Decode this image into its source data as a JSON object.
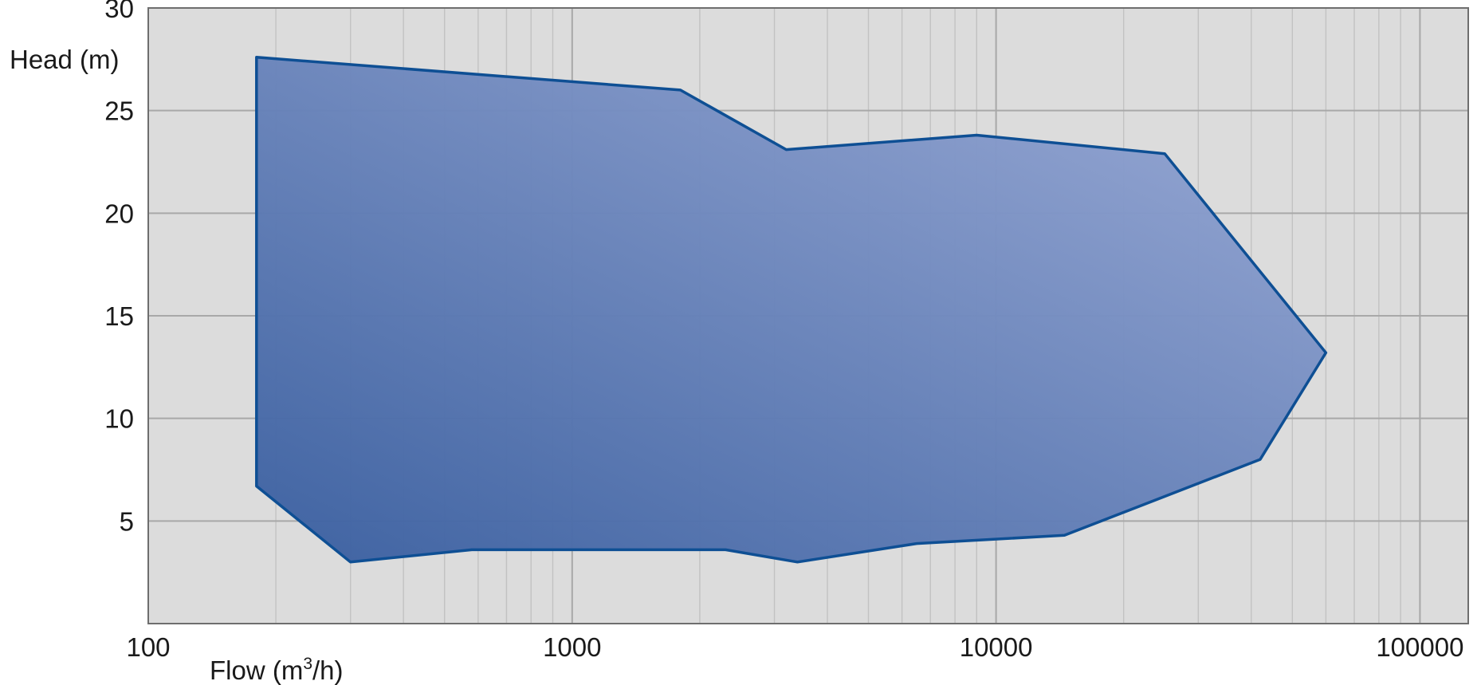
{
  "chart_data": {
    "type": "area",
    "title": "",
    "xlabel": "Flow (m³/h)",
    "ylabel": "Head (m)",
    "x_scale": "log",
    "xlim": [
      100,
      130000
    ],
    "ylim": [
      0,
      30
    ],
    "x_ticks": [
      100,
      1000,
      10000,
      100000
    ],
    "x_tick_labels": [
      "100",
      "1000",
      "10000",
      "100000"
    ],
    "y_ticks": [
      5,
      10,
      15,
      20,
      25,
      30
    ],
    "y_tick_labels": [
      "5",
      "10",
      "15",
      "20",
      "25",
      "30"
    ],
    "grid": true,
    "legend": "none",
    "colors": {
      "background": "#dcdcdc",
      "grid_major": "#a8a8a8",
      "grid_minor": "#c2c2c2",
      "fill_dark": "#3a5fa0",
      "fill_light": "#9aaad6",
      "outline": "#0e4f94",
      "frame": "#6e6e6e"
    },
    "series": [
      {
        "x": [
          180,
          1800,
          3200,
          9000,
          25000,
          60000,
          42000,
          14500,
          6500,
          3400,
          2300,
          580,
          300,
          180
        ],
        "y": [
          27.6,
          26.0,
          23.1,
          23.8,
          22.9,
          13.2,
          8.0,
          4.3,
          3.9,
          3.0,
          3.6,
          3.6,
          3.0,
          6.7
        ]
      }
    ]
  }
}
